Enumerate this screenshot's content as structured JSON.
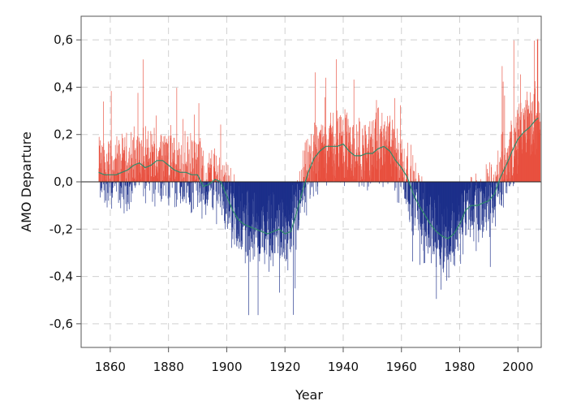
{
  "chart_data": {
    "type": "bar",
    "title": "",
    "xlabel": "Year",
    "ylabel": "AMO Departure",
    "xlim": [
      1850,
      2008
    ],
    "ylim": [
      -0.7,
      0.7
    ],
    "x_ticks": [
      1860,
      1880,
      1900,
      1920,
      1940,
      1960,
      1980,
      2000
    ],
    "x_tick_labels": [
      "1860",
      "1880",
      "1900",
      "1920",
      "1940",
      "1960",
      "1980",
      "2000"
    ],
    "y_ticks": [
      -0.6,
      -0.4,
      -0.2,
      0.0,
      0.2,
      0.4,
      0.6
    ],
    "y_tick_labels": [
      "-0,6",
      "-0,4",
      "-0,2",
      "0,0",
      "0,2",
      "0,4",
      "0,6"
    ],
    "grid": true,
    "colors": {
      "positive": "#e8503f",
      "negative": "#1c2f8a",
      "smooth": "#2e8b6a",
      "grid": "#d0d0d0",
      "axis": "#555555"
    },
    "bar_resolution": "monthly anomaly bars, positive red, negative blue",
    "series": [
      {
        "x": [
          1856,
          1858,
          1860,
          1862,
          1864,
          1866,
          1868,
          1870,
          1872,
          1874,
          1876,
          1878,
          1880,
          1882,
          1884,
          1886,
          1888,
          1890,
          1892,
          1894,
          1896,
          1898,
          1900,
          1902,
          1904,
          1906,
          1908,
          1910,
          1912,
          1914,
          1916,
          1918,
          1920,
          1922,
          1924,
          1926,
          1928,
          1930,
          1932,
          1934,
          1936,
          1938,
          1940,
          1942,
          1944,
          1946,
          1948,
          1950,
          1952,
          1954,
          1956,
          1958,
          1960,
          1962,
          1964,
          1966,
          1968,
          1970,
          1972,
          1974,
          1976,
          1978,
          1980,
          1982,
          1984,
          1986,
          1988,
          1990,
          1992,
          1994,
          1996,
          1998,
          2000,
          2002,
          2004,
          2006,
          2007
        ],
        "y": [
          0.04,
          0.03,
          0.03,
          0.03,
          0.04,
          0.05,
          0.07,
          0.08,
          0.06,
          0.07,
          0.09,
          0.09,
          0.07,
          0.05,
          0.04,
          0.04,
          0.03,
          0.03,
          -0.02,
          -0.01,
          0.01,
          0.0,
          -0.06,
          -0.12,
          -0.16,
          -0.18,
          -0.19,
          -0.2,
          -0.21,
          -0.22,
          -0.21,
          -0.2,
          -0.22,
          -0.21,
          -0.13,
          -0.04,
          0.04,
          0.1,
          0.13,
          0.15,
          0.15,
          0.15,
          0.16,
          0.13,
          0.11,
          0.11,
          0.12,
          0.12,
          0.14,
          0.15,
          0.13,
          0.09,
          0.06,
          0.02,
          -0.05,
          -0.1,
          -0.14,
          -0.18,
          -0.21,
          -0.23,
          -0.24,
          -0.22,
          -0.18,
          -0.12,
          -0.1,
          -0.1,
          -0.09,
          -0.08,
          -0.05,
          0.02,
          0.07,
          0.13,
          0.18,
          0.21,
          0.23,
          0.26,
          0.27
        ]
      }
    ]
  }
}
